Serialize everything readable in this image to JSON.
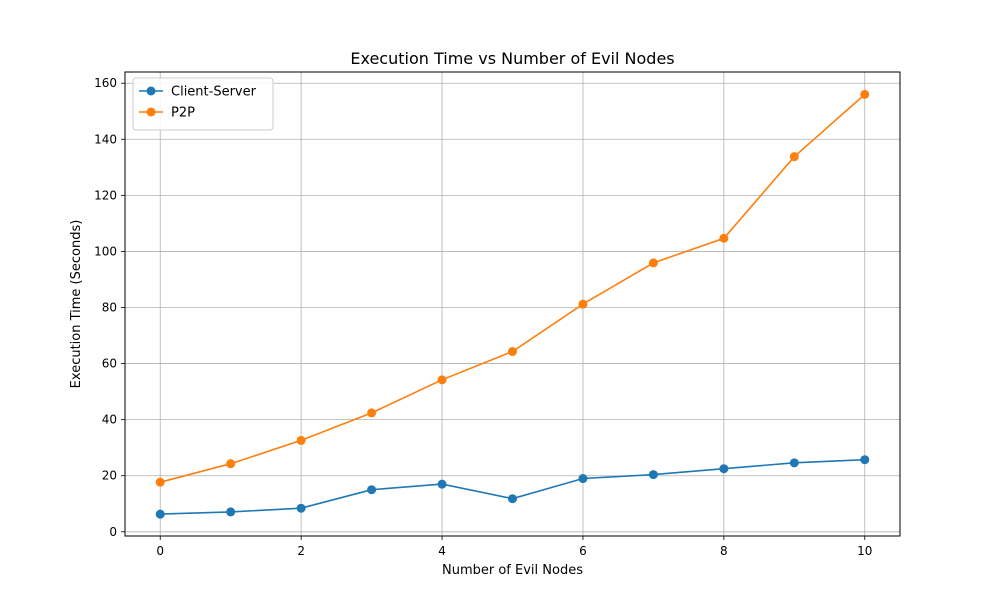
{
  "chart_data": {
    "type": "line",
    "title": "Execution Time vs Number of Evil Nodes",
    "xlabel": "Number of Evil Nodes",
    "ylabel": "Execution Time (Seconds)",
    "x": [
      0,
      1,
      2,
      3,
      4,
      5,
      6,
      7,
      8,
      9,
      10
    ],
    "xlim": [
      -0.5,
      10.5
    ],
    "ylim": [
      -1.5,
      164
    ],
    "xticks": [
      0,
      2,
      4,
      6,
      8,
      10
    ],
    "yticks": [
      0,
      20,
      40,
      60,
      80,
      100,
      120,
      140,
      160
    ],
    "grid": true,
    "legend_position": "top-left",
    "series": [
      {
        "name": "Client-Server",
        "color": "#1f77b4",
        "values": [
          6.3,
          7.1,
          8.4,
          15.0,
          17.0,
          11.8,
          19.0,
          20.4,
          22.5,
          24.6,
          25.7
        ]
      },
      {
        "name": "P2P",
        "color": "#ff7f0e",
        "values": [
          17.7,
          24.3,
          32.6,
          42.4,
          54.2,
          64.3,
          81.2,
          95.9,
          104.7,
          133.8,
          156.0
        ]
      }
    ]
  }
}
